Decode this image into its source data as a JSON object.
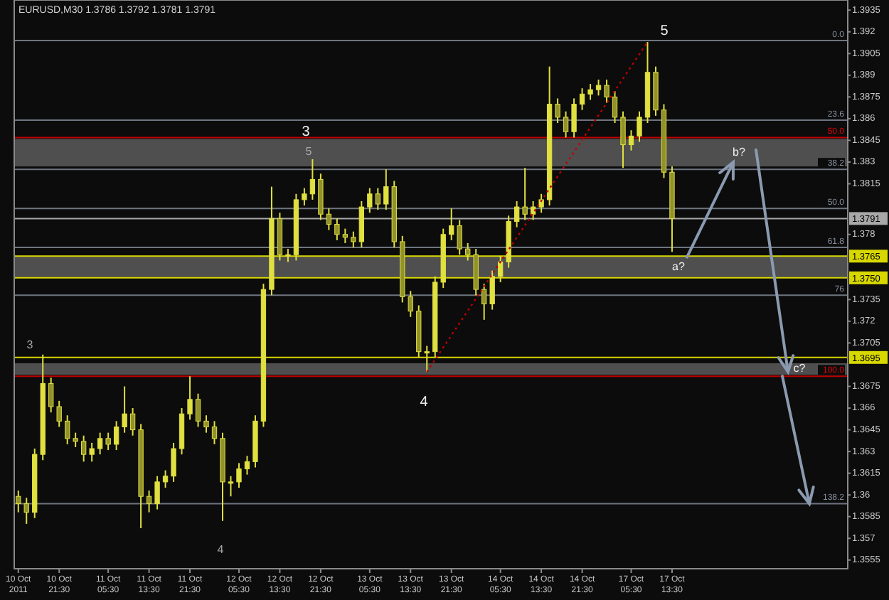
{
  "chart_data": {
    "type": "candlestick",
    "title": "EURUSD,M30  1.3786 1.3792 1.3781 1.3791",
    "color": "#e0e040",
    "categories": [
      "10 Oct 2011",
      null,
      null,
      null,
      null,
      "10 Oct 21:30",
      null,
      null,
      null,
      null,
      null,
      "11 Oct 05:30",
      null,
      null,
      null,
      null,
      "11 Oct 13:30",
      null,
      null,
      null,
      null,
      "11 Oct 21:30",
      null,
      null,
      null,
      null,
      null,
      "12 Oct 05:30",
      null,
      null,
      null,
      null,
      "12 Oct 13:30",
      null,
      null,
      null,
      null,
      "12 Oct 21:30",
      null,
      null,
      null,
      null,
      null,
      "13 Oct 05:30",
      null,
      null,
      null,
      null,
      "13 Oct 13:30",
      null,
      null,
      null,
      null,
      "13 Oct 21:30",
      null,
      null,
      null,
      null,
      null,
      "14 Oct 05:30",
      null,
      null,
      null,
      null,
      "14 Oct 13:30",
      null,
      null,
      null,
      null,
      "14 Oct 21:30",
      null,
      null,
      null,
      null,
      null,
      "17 Oct 05:30",
      null,
      null,
      null,
      null,
      "17 Oct 13:30",
      null,
      null,
      null,
      null,
      null,
      null,
      null,
      null,
      null,
      null,
      null,
      null,
      null,
      null,
      null,
      null,
      null,
      null,
      null,
      null,
      null
    ],
    "ohlc": [
      [
        1.3599,
        1.3603,
        1.3588,
        1.3594
      ],
      [
        1.3594,
        1.3598,
        1.358,
        1.3588
      ],
      [
        1.3588,
        1.3632,
        1.3584,
        1.3628
      ],
      [
        1.3628,
        1.3697,
        1.3624,
        1.3677
      ],
      [
        1.3677,
        1.3681,
        1.3657,
        1.3661
      ],
      [
        1.3661,
        1.3665,
        1.3647,
        1.3651
      ],
      [
        1.3651,
        1.3655,
        1.3635,
        1.3639
      ],
      [
        1.3639,
        1.3643,
        1.3633,
        1.3637
      ],
      [
        1.3637,
        1.3641,
        1.3623,
        1.3628
      ],
      [
        1.3628,
        1.3636,
        1.3623,
        1.3632
      ],
      [
        1.3632,
        1.3643,
        1.3628,
        1.3639
      ],
      [
        1.3639,
        1.3643,
        1.3631,
        1.3635
      ],
      [
        1.3635,
        1.3651,
        1.3631,
        1.3647
      ],
      [
        1.3647,
        1.3675,
        1.3643,
        1.3656
      ],
      [
        1.3656,
        1.366,
        1.3641,
        1.3645
      ],
      [
        1.3645,
        1.3649,
        1.3577,
        1.3599
      ],
      [
        1.3599,
        1.3603,
        1.3588,
        1.3594
      ],
      [
        1.3594,
        1.3613,
        1.359,
        1.3609
      ],
      [
        1.3609,
        1.3617,
        1.3605,
        1.3613
      ],
      [
        1.3613,
        1.3636,
        1.3609,
        1.3632
      ],
      [
        1.3632,
        1.366,
        1.3628,
        1.3656
      ],
      [
        1.3656,
        1.3682,
        1.3652,
        1.3666
      ],
      [
        1.3666,
        1.367,
        1.3647,
        1.3651
      ],
      [
        1.3651,
        1.3655,
        1.3643,
        1.3647
      ],
      [
        1.3647,
        1.3651,
        1.3635,
        1.3639
      ],
      [
        1.3639,
        1.3643,
        1.3582,
        1.3609
      ],
      [
        1.3609,
        1.3613,
        1.3599,
        1.3609
      ],
      [
        1.3609,
        1.3622,
        1.3605,
        1.3618
      ],
      [
        1.3618,
        1.3627,
        1.3614,
        1.3623
      ],
      [
        1.3623,
        1.3655,
        1.3619,
        1.3651
      ],
      [
        1.3651,
        1.3746,
        1.3647,
        1.3742
      ],
      [
        1.3742,
        1.3813,
        1.3738,
        1.3791
      ],
      [
        1.3791,
        1.3795,
        1.3762,
        1.3766
      ],
      [
        1.3766,
        1.377,
        1.3761,
        1.3766
      ],
      [
        1.3766,
        1.3808,
        1.3762,
        1.3804
      ],
      [
        1.3804,
        1.3812,
        1.38,
        1.3808
      ],
      [
        1.3808,
        1.3832,
        1.3804,
        1.3818
      ],
      [
        1.3818,
        1.3822,
        1.379,
        1.3794
      ],
      [
        1.3794,
        1.3798,
        1.3783,
        1.3787
      ],
      [
        1.3787,
        1.3791,
        1.3776,
        1.378
      ],
      [
        1.378,
        1.3784,
        1.3774,
        1.3778
      ],
      [
        1.3778,
        1.3782,
        1.3771,
        1.3775
      ],
      [
        1.3775,
        1.3803,
        1.3771,
        1.3799
      ],
      [
        1.3799,
        1.3812,
        1.3795,
        1.3808
      ],
      [
        1.3808,
        1.3812,
        1.3797,
        1.3801
      ],
      [
        1.3801,
        1.3825,
        1.3797,
        1.3813
      ],
      [
        1.3813,
        1.3817,
        1.3771,
        1.3775
      ],
      [
        1.3775,
        1.3779,
        1.3733,
        1.3737
      ],
      [
        1.3737,
        1.3741,
        1.3723,
        1.3727
      ],
      [
        1.3727,
        1.3731,
        1.3695,
        1.3699
      ],
      [
        1.3699,
        1.3703,
        1.3685,
        1.3699
      ],
      [
        1.3699,
        1.3751,
        1.3695,
        1.3747
      ],
      [
        1.3747,
        1.3784,
        1.3743,
        1.378
      ],
      [
        1.378,
        1.3798,
        1.3776,
        1.3786
      ],
      [
        1.3786,
        1.379,
        1.3766,
        1.377
      ],
      [
        1.377,
        1.3774,
        1.3762,
        1.3766
      ],
      [
        1.3766,
        1.377,
        1.3738,
        1.3742
      ],
      [
        1.3742,
        1.3746,
        1.3721,
        1.3732
      ],
      [
        1.3732,
        1.3755,
        1.3728,
        1.3751
      ],
      [
        1.3751,
        1.3765,
        1.3747,
        1.3761
      ],
      [
        1.3761,
        1.3793,
        1.3757,
        1.3789
      ],
      [
        1.3789,
        1.3803,
        1.3785,
        1.3799
      ],
      [
        1.3799,
        1.3826,
        1.379,
        1.3794
      ],
      [
        1.3794,
        1.3803,
        1.379,
        1.3799
      ],
      [
        1.3799,
        1.3808,
        1.3795,
        1.3804
      ],
      [
        1.3804,
        1.3896,
        1.38,
        1.387
      ],
      [
        1.387,
        1.3874,
        1.3857,
        1.3861
      ],
      [
        1.3861,
        1.3865,
        1.3847,
        1.3851
      ],
      [
        1.3851,
        1.3874,
        1.3847,
        1.387
      ],
      [
        1.387,
        1.3881,
        1.3866,
        1.3877
      ],
      [
        1.3877,
        1.3884,
        1.3873,
        1.388
      ],
      [
        1.388,
        1.3887,
        1.3876,
        1.3883
      ],
      [
        1.3883,
        1.3887,
        1.3871,
        1.3875
      ],
      [
        1.3875,
        1.3879,
        1.3857,
        1.3861
      ],
      [
        1.3861,
        1.3865,
        1.3826,
        1.3842
      ],
      [
        1.3842,
        1.3852,
        1.3838,
        1.3848
      ],
      [
        1.3848,
        1.3865,
        1.3844,
        1.3861
      ],
      [
        1.3861,
        1.3913,
        1.3857,
        1.3892
      ],
      [
        1.3892,
        1.3896,
        1.3862,
        1.3866
      ],
      [
        1.3866,
        1.387,
        1.3819,
        1.3823
      ],
      [
        1.3823,
        1.3827,
        1.3768,
        1.3791
      ],
      null,
      null,
      null,
      null,
      null,
      null,
      null,
      null,
      null,
      null,
      null,
      null,
      null,
      null,
      null,
      null,
      null,
      null,
      null,
      null,
      null
    ],
    "series": [
      {
        "type": "line",
        "values": [
          null,
          null,
          null,
          null,
          null,
          null,
          null,
          null,
          null,
          null,
          null,
          null,
          null,
          null,
          null,
          null,
          null,
          null,
          null,
          null,
          null,
          null,
          null,
          null,
          null,
          null,
          null,
          null,
          null,
          null,
          null,
          null,
          null,
          null,
          null,
          null,
          null,
          null,
          null,
          null,
          null,
          null,
          null,
          null,
          null,
          null,
          null,
          null,
          null,
          null,
          1.3685,
          null,
          null,
          null,
          null,
          null,
          null,
          null,
          null,
          null,
          null,
          null,
          null,
          null,
          null,
          null,
          null,
          null,
          null,
          null,
          null,
          null,
          null,
          null,
          null,
          null,
          null,
          1.3913,
          null,
          null,
          null,
          null,
          null,
          null,
          null,
          null,
          null,
          null,
          null,
          null,
          null,
          null,
          null,
          null,
          null,
          null,
          null,
          null,
          null,
          null,
          null,
          null
        ],
        "color": "#c00000",
        "line_style": "dotted"
      }
    ],
    "ylim": [
      1.3549,
      1.3942
    ],
    "yticks": [
      1.3935,
      1.392,
      1.3905,
      1.389,
      1.3875,
      1.386,
      1.3845,
      1.383,
      1.3815,
      1.378,
      1.3735,
      1.372,
      1.3705,
      1.3675,
      1.366,
      1.3645,
      1.363,
      1.3615,
      1.36,
      1.3585,
      1.357,
      1.3555
    ],
    "bands": [
      {
        "axis": "y",
        "from": 1.375,
        "to": 1.3765,
        "label": "a?",
        "color": "#b4b4b4"
      },
      {
        "axis": "y",
        "from": 1.3827,
        "to": 1.3846,
        "label": "b?",
        "color": "#b4b4b4"
      },
      {
        "axis": "y",
        "from": 1.3683,
        "to": 1.3691,
        "label": "c?",
        "color": "#b4b4b4"
      }
    ],
    "ref_lines": [
      {
        "axis": "y",
        "value": 1.3914,
        "color": "#6e7580"
      },
      {
        "axis": "y",
        "value": 1.3859,
        "color": "#6e7580"
      },
      {
        "axis": "y",
        "value": 1.3847,
        "color": "#c00000"
      },
      {
        "axis": "y",
        "value": 1.3825,
        "color": "#6e7580"
      },
      {
        "axis": "y",
        "value": 1.3798,
        "color": "#6e7580"
      },
      {
        "axis": "y",
        "value": 1.3791,
        "label": "1.3791",
        "color": "#a8a8a8"
      },
      {
        "axis": "y",
        "value": 1.3771,
        "color": "#6e7580"
      },
      {
        "axis": "y",
        "value": 1.3765,
        "label": "1.3765",
        "color": "#d8d800"
      },
      {
        "axis": "y",
        "value": 1.375,
        "label": "1.3750",
        "color": "#d8d800"
      },
      {
        "axis": "y",
        "value": 1.3738,
        "color": "#6e7580"
      },
      {
        "axis": "y",
        "value": 1.3695,
        "label": "1.3695",
        "color": "#d8d800"
      },
      {
        "axis": "y",
        "value": 1.3682,
        "color": "#c00000"
      },
      {
        "axis": "y",
        "value": 1.3594,
        "color": "#6e7580"
      }
    ],
    "annotations": [
      "3",
      "4",
      "3",
      "5",
      "4",
      "5",
      {
        "text": "0.0",
        "y": 1.3914
      },
      {
        "text": "23.6",
        "y": 1.3859
      },
      {
        "text": "50.0",
        "y": 1.3847
      },
      {
        "text": "38.2",
        "y": 1.3825
      },
      {
        "text": "50.0",
        "y": 1.3798
      },
      {
        "text": "61.8",
        "y": 1.3771
      },
      {
        "text": "76",
        "y": 1.3738
      },
      {
        "text": "100.0",
        "y": 1.3682
      },
      {
        "text": "138.2",
        "y": 1.3594
      }
    ]
  }
}
